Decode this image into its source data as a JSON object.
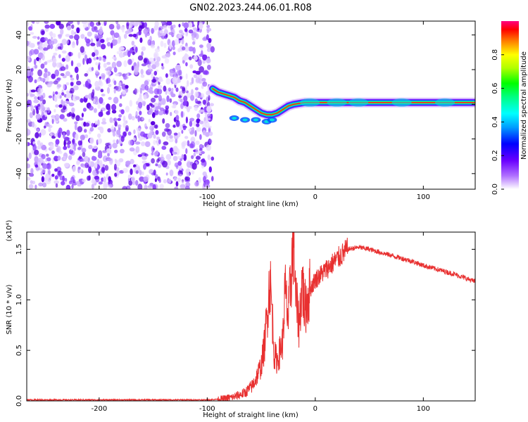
{
  "title": "GN02.2023.244.06.01.R08",
  "chart_data": [
    {
      "type": "heatmap",
      "xlabel": "Height of straight line (km)",
      "ylabel": "Frequency (Hz)",
      "xlim": [
        -267,
        148
      ],
      "ylim": [
        -49,
        48
      ],
      "x_ticks": [
        -200,
        -100,
        0,
        100
      ],
      "x_tick_labels": [
        "-200",
        "-100",
        "0",
        "100"
      ],
      "y_ticks": [
        -40,
        -20,
        0,
        20,
        40
      ],
      "y_tick_labels": [
        "-40",
        "-20",
        "0",
        "20",
        "40"
      ],
      "noise_region_x": [
        -267,
        -95
      ],
      "signal_track": {
        "x": [
          -95,
          -90,
          -85,
          -80,
          -75,
          -70,
          -65,
          -60,
          -55,
          -50,
          -45,
          -40,
          -35,
          -30,
          -25,
          -20,
          -10,
          0,
          20,
          40,
          60,
          80,
          100,
          120,
          148
        ],
        "y": [
          9,
          7,
          6,
          5,
          4,
          2,
          1,
          -1,
          -3,
          -5,
          -6,
          -6,
          -5,
          -3,
          -1,
          0,
          1,
          1,
          1,
          1,
          1,
          1,
          1,
          1,
          1
        ]
      },
      "colorbar": {
        "label": "Normalized spectral amplitude",
        "range": [
          0,
          1
        ],
        "ticks": [
          0,
          0.2,
          0.4,
          0.6,
          0.8
        ],
        "tick_labels": [
          "0.0",
          "0.2",
          "0.4",
          "0.6",
          "0.8"
        ]
      }
    },
    {
      "type": "line",
      "xlabel": "Height of straight line (km)",
      "ylabel": "SNR (10 * v/v)",
      "ylabel_multiplier": "(x10⁴)",
      "xlim": [
        -267,
        148
      ],
      "ylim": [
        0,
        1.67
      ],
      "x_ticks": [
        -200,
        -100,
        0,
        100
      ],
      "x_tick_labels": [
        "-200",
        "-100",
        "0",
        "100"
      ],
      "y_ticks": [
        0,
        0.5,
        1.0,
        1.5
      ],
      "y_tick_labels": [
        "0.0",
        "0.5",
        "1.0",
        "1.5"
      ],
      "color": "#e83030",
      "series": [
        {
          "x": [
            -267,
            -200,
            -150,
            -100,
            -85,
            -75,
            -65,
            -58,
            -55,
            -50,
            -47,
            -45,
            -42,
            -40,
            -38,
            -35,
            -30,
            -28,
            -25,
            -22,
            -20,
            -18,
            -15,
            -12,
            -10,
            -5,
            0,
            5,
            10,
            15,
            20,
            25,
            30,
            40,
            50,
            60,
            70,
            80,
            90,
            100,
            110,
            120,
            130,
            140,
            148
          ],
          "y": [
            0.01,
            0.01,
            0.01,
            0.01,
            0.02,
            0.04,
            0.08,
            0.15,
            0.22,
            0.35,
            0.55,
            0.8,
            1.2,
            0.9,
            0.45,
            0.4,
            0.6,
            1.1,
            0.8,
            1.3,
            1.65,
            1.0,
            0.75,
            1.2,
            0.9,
            1.1,
            1.2,
            1.25,
            1.3,
            1.35,
            1.4,
            1.45,
            1.5,
            1.52,
            1.5,
            1.47,
            1.44,
            1.41,
            1.38,
            1.34,
            1.31,
            1.28,
            1.25,
            1.21,
            1.18
          ]
        }
      ]
    }
  ]
}
